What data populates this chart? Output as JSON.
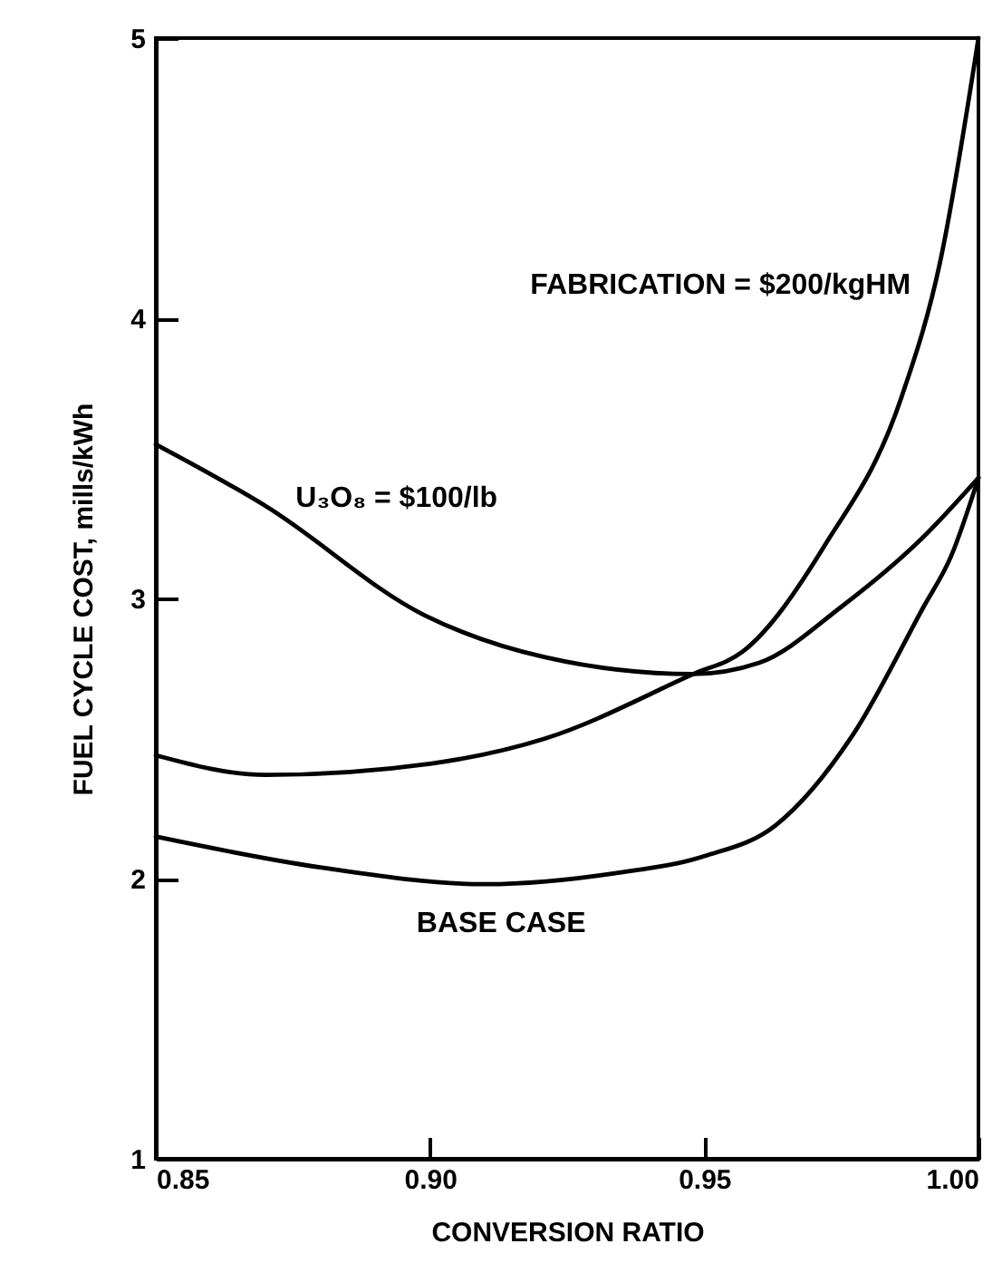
{
  "chart_data": {
    "type": "line",
    "xlabel": "CONVERSION RATIO",
    "ylabel": "FUEL CYCLE COST, mills/kWh",
    "xlim": [
      0.85,
      1.0
    ],
    "ylim": [
      1,
      5
    ],
    "xticks": [
      0.85,
      {
        "value": 0.9,
        "label": "0.90"
      },
      0.95,
      {
        "value": 1.0,
        "label": "1.00"
      }
    ],
    "yticks": [
      1,
      2,
      3,
      4,
      5
    ],
    "grid": false,
    "marker": "none",
    "line_style": "solid",
    "series": [
      {
        "name": "FABRICATION = $200/kgHM",
        "color": "#000000",
        "x": [
          0.85,
          0.87,
          0.9,
          0.921,
          0.948,
          0.957,
          0.972,
          0.986,
          0.993,
          1.0
        ],
        "values": [
          2.44,
          2.37,
          2.41,
          2.5,
          2.73,
          2.81,
          3.19,
          3.72,
          4.2,
          5.0
        ]
      },
      {
        "name": "U₃O₈ = $100/lb",
        "color": "#000000",
        "x": [
          0.85,
          0.87,
          0.899,
          0.921,
          0.948,
          0.96,
          0.975,
          0.99,
          1.0
        ],
        "values": [
          3.55,
          3.33,
          2.94,
          2.79,
          2.73,
          2.77,
          2.97,
          3.22,
          3.43
        ]
      },
      {
        "name": "BASE CASE",
        "color": "#000000",
        "x": [
          0.85,
          0.88,
          0.91,
          0.934,
          0.95,
          0.963,
          0.977,
          0.99,
          0.995,
          1.0
        ],
        "values": [
          2.15,
          2.04,
          1.98,
          2.02,
          2.08,
          2.19,
          2.51,
          2.97,
          3.15,
          3.43
        ]
      }
    ]
  }
}
